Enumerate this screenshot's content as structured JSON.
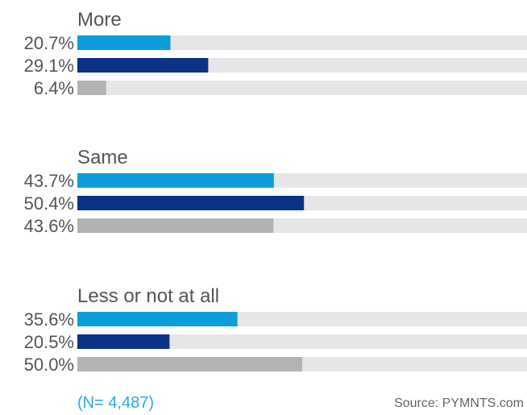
{
  "chart_data": {
    "type": "bar",
    "orientation": "horizontal",
    "xlim": [
      0,
      100
    ],
    "groups": [
      {
        "label": "More",
        "values": [
          20.7,
          29.1,
          6.4
        ],
        "value_labels": [
          "20.7%",
          "29.1%",
          "6.4%"
        ]
      },
      {
        "label": "Same",
        "values": [
          43.7,
          50.4,
          43.6
        ],
        "value_labels": [
          "43.7%",
          "50.4%",
          "43.6%"
        ]
      },
      {
        "label": "Less or not at all",
        "values": [
          35.6,
          20.5,
          50.0
        ],
        "value_labels": [
          "35.6%",
          "20.5%",
          "50.0%"
        ]
      }
    ],
    "series_colors": [
      "#0d9ddb",
      "#0b3287",
      "#b3b3b5"
    ],
    "track_color": "#e6e6e8"
  },
  "footer": {
    "sample_size": "(N= 4,487)",
    "source": "Source: PYMNTS.com"
  }
}
